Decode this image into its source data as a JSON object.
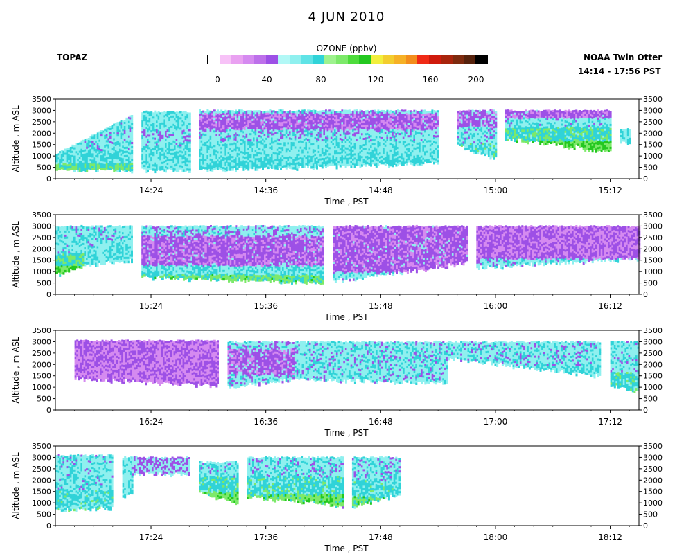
{
  "title": "4 JUN 2010",
  "left_label": "TOPAZ",
  "right_label_1": "NOAA Twin Otter",
  "right_label_2": "14:14 - 17:56 PST",
  "colorbar": {
    "title": "OZONE (ppbv)",
    "ticks": [
      "0",
      "40",
      "80",
      "120",
      "160",
      "200"
    ],
    "colors": [
      "#ffffff",
      "#f7c2f7",
      "#e9a1f1",
      "#d58af0",
      "#bd70ea",
      "#9d50e6",
      "#b2f8f6",
      "#8ff0ef",
      "#5fe3e6",
      "#30d3d8",
      "#9ef28e",
      "#7de96a",
      "#4edc3c",
      "#24c820",
      "#f2ef3c",
      "#f3cd2e",
      "#f6b126",
      "#f38d1c",
      "#f02a16",
      "#cf1a0c",
      "#a8240c",
      "#7e2a0e",
      "#56220c",
      "#000000"
    ]
  },
  "chart_data": [
    {
      "type": "heatmap",
      "panel": 1,
      "xlabel": "Time , PST",
      "ylabel": "Altitude , m ASL",
      "ylim": [
        0,
        3500
      ],
      "yticks": [
        "0",
        "500",
        "1000",
        "1500",
        "2000",
        "2500",
        "3000",
        "3500"
      ],
      "xlim": [
        "14:14",
        "15:15"
      ],
      "xticks": [
        "14:24",
        "14:36",
        "14:48",
        "15:00",
        "15:12"
      ],
      "segments": [
        {
          "start": "14:14",
          "end": "14:22",
          "bottom_start": 400,
          "bottom_end": 400,
          "top_start": 1100,
          "top_end": 2800,
          "layers": [
            [
              400,
              700,
              4.5
            ],
            [
              700,
              1300,
              3.6
            ],
            [
              1300,
              2800,
              3.2
            ]
          ]
        },
        {
          "start": "14:23",
          "end": "14:28",
          "bottom_start": 400,
          "bottom_end": 400,
          "top_start": 2950,
          "top_end": 2950,
          "layers": [
            [
              400,
              1500,
              3.4
            ],
            [
              1500,
              2200,
              3.0
            ],
            [
              2200,
              2950,
              3.3
            ]
          ]
        },
        {
          "start": "14:29",
          "end": "14:54",
          "bottom_start": 400,
          "bottom_end": 700,
          "top_start": 3000,
          "top_end": 3000,
          "layers": [
            [
              400,
              1000,
              3.7
            ],
            [
              1000,
              1700,
              3.3
            ],
            [
              1700,
              2200,
              3.0
            ],
            [
              2200,
              2900,
              1.8
            ],
            [
              2900,
              3000,
              3.0
            ]
          ]
        },
        {
          "start": "14:56",
          "end": "15:00",
          "bottom_start": 1500,
          "bottom_end": 900,
          "top_start": 3000,
          "top_end": 3000,
          "layers": [
            [
              900,
              1600,
              3.8
            ],
            [
              1600,
              2300,
              3.1
            ],
            [
              2300,
              3000,
              2.0
            ]
          ]
        },
        {
          "start": "15:01",
          "end": "15:12",
          "bottom_start": 1800,
          "bottom_end": 1200,
          "top_start": 3000,
          "top_end": 3000,
          "layers": [
            [
              1200,
              1700,
              5.6
            ],
            [
              1700,
              2300,
              4.2
            ],
            [
              2300,
              2700,
              3.2
            ],
            [
              2700,
              3000,
              1.8
            ]
          ]
        },
        {
          "start": "15:13",
          "end": "15:14",
          "bottom_start": 1600,
          "bottom_end": 1600,
          "top_start": 2200,
          "top_end": 2200,
          "layers": [
            [
              1600,
              2200,
              3.5
            ]
          ]
        }
      ]
    },
    {
      "type": "heatmap",
      "panel": 2,
      "xlabel": "Time , PST",
      "ylabel": "Altitude , m ASL",
      "ylim": [
        0,
        3500
      ],
      "yticks": [
        "0",
        "500",
        "1000",
        "1500",
        "2000",
        "2500",
        "3000",
        "3500"
      ],
      "xlim": [
        "15:14",
        "16:15"
      ],
      "xticks": [
        "15:24",
        "15:36",
        "15:48",
        "16:00",
        "16:12"
      ],
      "segments": [
        {
          "start": "15:14",
          "end": "15:17",
          "bottom_start": 900,
          "bottom_end": 1300,
          "top_start": 3000,
          "top_end": 3000,
          "layers": [
            [
              900,
              1300,
              5.5
            ],
            [
              1300,
              1800,
              4.3
            ],
            [
              1800,
              3000,
              3.2
            ]
          ]
        },
        {
          "start": "15:17",
          "end": "15:22",
          "bottom_start": 1300,
          "bottom_end": 1500,
          "top_start": 3000,
          "top_end": 3000,
          "layers": [
            [
              1300,
              2200,
              3.4
            ],
            [
              2200,
              3000,
              3.1
            ]
          ]
        },
        {
          "start": "15:23",
          "end": "15:42",
          "bottom_start": 800,
          "bottom_end": 500,
          "top_start": 3000,
          "top_end": 3000,
          "layers": [
            [
              500,
              900,
              4.8
            ],
            [
              900,
              1300,
              3.5
            ],
            [
              1300,
              2600,
              1.8
            ],
            [
              2600,
              3000,
              2.9
            ]
          ]
        },
        {
          "start": "15:43",
          "end": "15:57",
          "bottom_start": 600,
          "bottom_end": 1400,
          "top_start": 3000,
          "top_end": 3000,
          "layers": [
            [
              500,
              1000,
              3.2
            ],
            [
              1000,
              3000,
              1.8
            ]
          ]
        },
        {
          "start": "15:58",
          "end": "16:15",
          "bottom_start": 1200,
          "bottom_end": 1600,
          "top_start": 3000,
          "top_end": 3000,
          "layers": [
            [
              1100,
              1600,
              3.0
            ],
            [
              1600,
              3000,
              1.6
            ]
          ]
        }
      ]
    },
    {
      "type": "heatmap",
      "panel": 3,
      "xlabel": "Time , PST",
      "ylabel": "Altitude , m ASL",
      "ylim": [
        0,
        3500
      ],
      "yticks": [
        "0",
        "500",
        "1000",
        "1500",
        "2000",
        "2500",
        "3000",
        "3500"
      ],
      "xlim": [
        "16:14",
        "17:15"
      ],
      "xticks": [
        "16:24",
        "16:36",
        "16:48",
        "17:00",
        "17:12"
      ],
      "segments": [
        {
          "start": "16:16",
          "end": "16:31",
          "bottom_start": 1400,
          "bottom_end": 1100,
          "top_start": 3050,
          "top_end": 3050,
          "layers": [
            [
              1100,
              3050,
              1.5
            ]
          ]
        },
        {
          "start": "16:32",
          "end": "16:39",
          "bottom_start": 1000,
          "bottom_end": 1400,
          "top_start": 3000,
          "top_end": 3000,
          "layers": [
            [
              1000,
              1600,
              3.0
            ],
            [
              1600,
              2700,
              1.9
            ],
            [
              2700,
              3000,
              3.0
            ]
          ]
        },
        {
          "start": "16:39",
          "end": "16:55",
          "bottom_start": 1400,
          "bottom_end": 1200,
          "top_start": 3000,
          "top_end": 3000,
          "layers": [
            [
              1200,
              3000,
              3.1
            ]
          ]
        },
        {
          "start": "16:55",
          "end": "17:11",
          "bottom_start": 2300,
          "bottom_end": 1500,
          "top_start": 3000,
          "top_end": 3000,
          "layers": [
            [
              1500,
              2000,
              3.4
            ],
            [
              2000,
              3000,
              3.1
            ]
          ]
        },
        {
          "start": "17:12",
          "end": "17:15",
          "bottom_start": 1100,
          "bottom_end": 800,
          "top_start": 3000,
          "top_end": 3000,
          "layers": [
            [
              800,
              1700,
              4.0
            ],
            [
              1700,
              3000,
              3.2
            ]
          ]
        }
      ]
    },
    {
      "type": "heatmap",
      "panel": 4,
      "xlabel": "Time , PST",
      "ylabel": "Altitude , m ASL",
      "ylim": [
        0,
        3500
      ],
      "yticks": [
        "0",
        "500",
        "1000",
        "1500",
        "2000",
        "2500",
        "3000",
        "3500"
      ],
      "xlim": [
        "17:14",
        "18:15"
      ],
      "xticks": [
        "17:24",
        "17:36",
        "17:48",
        "18:00",
        "18:12"
      ],
      "segments": [
        {
          "start": "17:14",
          "end": "17:20",
          "bottom_start": 700,
          "bottom_end": 800,
          "top_start": 3100,
          "top_end": 3100,
          "layers": [
            [
              500,
              1600,
              3.8
            ],
            [
              1600,
              3100,
              3.2
            ]
          ]
        },
        {
          "start": "17:21",
          "end": "17:22",
          "bottom_start": 1200,
          "bottom_end": 1500,
          "top_start": 3000,
          "top_end": 3000,
          "layers": [
            [
              1200,
              3000,
              3.3
            ]
          ]
        },
        {
          "start": "17:22",
          "end": "17:28",
          "bottom_start": 2300,
          "bottom_end": 2300,
          "top_start": 3000,
          "top_end": 3000,
          "layers": [
            [
              2300,
              3000,
              2.6
            ]
          ]
        },
        {
          "start": "17:29",
          "end": "17:33",
          "bottom_start": 1500,
          "bottom_end": 1000,
          "top_start": 2800,
          "top_end": 2800,
          "layers": [
            [
              1000,
              1500,
              5.2
            ],
            [
              1500,
              2200,
              4.0
            ],
            [
              2200,
              2800,
              3.2
            ]
          ]
        },
        {
          "start": "17:34",
          "end": "17:44",
          "bottom_start": 1300,
          "bottom_end": 900,
          "top_start": 3000,
          "top_end": 3000,
          "layers": [
            [
              900,
              1400,
              5.0
            ],
            [
              1400,
              2200,
              3.9
            ],
            [
              2200,
              3000,
              3.1
            ]
          ]
        },
        {
          "start": "17:45",
          "end": "17:50",
          "bottom_start": 900,
          "bottom_end": 1400,
          "top_start": 3000,
          "top_end": 3000,
          "layers": [
            [
              900,
              1300,
              5.0
            ],
            [
              1300,
              2000,
              3.8
            ],
            [
              2000,
              3000,
              3.1
            ]
          ]
        }
      ]
    }
  ]
}
